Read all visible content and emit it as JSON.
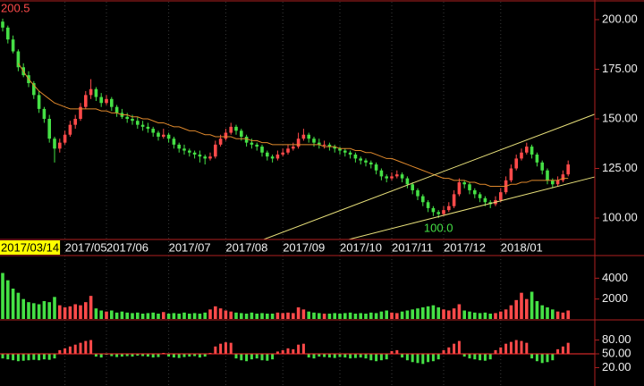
{
  "chart_data": {
    "type": "candlestick",
    "categories": [
      "2017/03/14",
      null,
      null,
      null,
      null,
      null,
      null,
      null,
      null,
      null,
      null,
      null,
      "2017/05",
      null,
      null,
      null,
      null,
      null,
      null,
      null,
      "2017/06",
      null,
      null,
      null,
      null,
      null,
      null,
      null,
      null,
      null,
      null,
      null,
      "2017/07",
      null,
      null,
      null,
      null,
      null,
      null,
      null,
      null,
      null,
      null,
      "2017/08",
      null,
      null,
      null,
      null,
      null,
      null,
      null,
      null,
      null,
      null,
      "2017/09",
      null,
      null,
      null,
      null,
      null,
      null,
      null,
      null,
      null,
      null,
      "2017/10",
      null,
      null,
      null,
      null,
      null,
      null,
      null,
      null,
      null,
      "2017/11",
      null,
      null,
      null,
      null,
      null,
      null,
      null,
      null,
      null,
      "2017/12",
      null,
      null,
      null,
      null,
      null,
      null,
      null,
      null,
      null,
      null,
      "2018/01",
      null,
      null,
      null,
      null,
      null,
      null,
      null,
      null,
      null,
      null,
      null,
      null,
      null
    ],
    "ohlc": [
      [
        199,
        200.5,
        194,
        196
      ],
      [
        196,
        197,
        188,
        190
      ],
      [
        190,
        192,
        183,
        184
      ],
      [
        184,
        185,
        174,
        176
      ],
      [
        176,
        178,
        171,
        172
      ],
      [
        172,
        174,
        166,
        168
      ],
      [
        168,
        169,
        160,
        162
      ],
      [
        162,
        164,
        153,
        155
      ],
      [
        155,
        156,
        148,
        150
      ],
      [
        150,
        152,
        138,
        140
      ],
      [
        140,
        141,
        128,
        135
      ],
      [
        135,
        140,
        133,
        138
      ],
      [
        138,
        144,
        137,
        142
      ],
      [
        142,
        149,
        141,
        147
      ],
      [
        147,
        152,
        145,
        150
      ],
      [
        150,
        158,
        149,
        156
      ],
      [
        156,
        164,
        155,
        162
      ],
      [
        162,
        170,
        160,
        165
      ],
      [
        165,
        166,
        159,
        161
      ],
      [
        161,
        163,
        156,
        158
      ],
      [
        158,
        162,
        157,
        160
      ],
      [
        160,
        161,
        154,
        156
      ],
      [
        156,
        157,
        151,
        153
      ],
      [
        153,
        155,
        150,
        151
      ],
      [
        151,
        153,
        148,
        150
      ],
      [
        150,
        152,
        147,
        149
      ],
      [
        149,
        151,
        145,
        147
      ],
      [
        147,
        149,
        144,
        146
      ],
      [
        146,
        148,
        143,
        145
      ],
      [
        145,
        146,
        141,
        143
      ],
      [
        143,
        144,
        139,
        141
      ],
      [
        141,
        145,
        140,
        142
      ],
      [
        142,
        143,
        138,
        140
      ],
      [
        140,
        141,
        135,
        137
      ],
      [
        137,
        138,
        133,
        135
      ],
      [
        135,
        137,
        132,
        134
      ],
      [
        134,
        135,
        131,
        133
      ],
      [
        133,
        134,
        130,
        132
      ],
      [
        132,
        134,
        128,
        131
      ],
      [
        131,
        132,
        127,
        130
      ],
      [
        130,
        133,
        129,
        131
      ],
      [
        131,
        139,
        130,
        137
      ],
      [
        137,
        142,
        136,
        140
      ],
      [
        140,
        145,
        139,
        143
      ],
      [
        143,
        148,
        142,
        146
      ],
      [
        146,
        147,
        142,
        144
      ],
      [
        144,
        145,
        139,
        141
      ],
      [
        141,
        142,
        136,
        138
      ],
      [
        138,
        140,
        135,
        137
      ],
      [
        137,
        138,
        134,
        136
      ],
      [
        136,
        137,
        131,
        133
      ],
      [
        133,
        134,
        129,
        131
      ],
      [
        131,
        132,
        128,
        130
      ],
      [
        130,
        134,
        129,
        132
      ],
      [
        132,
        135,
        131,
        133
      ],
      [
        133,
        137,
        132,
        135
      ],
      [
        135,
        138,
        134,
        136
      ],
      [
        136,
        143,
        135,
        140
      ],
      [
        140,
        145,
        139,
        142
      ],
      [
        142,
        143,
        138,
        140
      ],
      [
        140,
        141,
        136,
        138
      ],
      [
        138,
        140,
        135,
        137
      ],
      [
        137,
        139,
        135,
        137
      ],
      [
        137,
        138,
        134,
        136
      ],
      [
        136,
        137,
        133,
        135
      ],
      [
        135,
        136,
        132,
        134
      ],
      [
        134,
        135,
        131,
        133
      ],
      [
        133,
        134,
        130,
        132
      ],
      [
        132,
        133,
        128,
        130
      ],
      [
        130,
        131,
        127,
        129
      ],
      [
        129,
        130,
        126,
        128
      ],
      [
        128,
        129,
        125,
        127
      ],
      [
        127,
        128,
        122,
        124
      ],
      [
        124,
        125,
        119,
        121
      ],
      [
        121,
        122,
        118,
        120
      ],
      [
        120,
        123,
        119,
        121
      ],
      [
        121,
        124,
        120,
        122
      ],
      [
        122,
        123,
        118,
        120
      ],
      [
        120,
        121,
        115,
        117
      ],
      [
        117,
        118,
        112,
        114
      ],
      [
        114,
        115,
        109,
        111
      ],
      [
        111,
        112,
        106,
        108
      ],
      [
        108,
        109,
        103,
        105
      ],
      [
        105,
        106,
        101,
        103
      ],
      [
        103,
        104,
        100,
        102
      ],
      [
        102,
        106,
        101,
        104
      ],
      [
        104,
        108,
        103,
        106
      ],
      [
        106,
        114,
        105,
        112
      ],
      [
        112,
        120,
        111,
        118
      ],
      [
        118,
        119,
        115,
        117
      ],
      [
        117,
        118,
        112,
        114
      ],
      [
        114,
        115,
        110,
        112
      ],
      [
        112,
        113,
        108,
        110
      ],
      [
        110,
        111,
        106,
        108
      ],
      [
        108,
        109,
        105,
        107
      ],
      [
        107,
        111,
        106,
        109
      ],
      [
        109,
        115,
        108,
        113
      ],
      [
        113,
        121,
        112,
        119
      ],
      [
        119,
        127,
        118,
        125
      ],
      [
        125,
        132,
        124,
        130
      ],
      [
        130,
        135,
        129,
        133
      ],
      [
        133,
        138,
        132,
        136
      ],
      [
        136,
        137,
        130,
        132
      ],
      [
        132,
        133,
        126,
        128
      ],
      [
        128,
        129,
        122,
        124
      ],
      [
        124,
        125,
        117,
        119
      ],
      [
        119,
        120,
        115,
        117
      ],
      [
        117,
        121,
        116,
        119
      ],
      [
        119,
        124,
        118,
        122
      ],
      [
        122,
        129,
        121,
        127
      ]
    ],
    "ylim": [
      89.2,
      209.9
    ],
    "yticks": [
      {
        "value": 100,
        "label": "100.00"
      },
      {
        "value": 125,
        "label": "125.00"
      },
      {
        "value": 150,
        "label": "150.00"
      },
      {
        "value": 175,
        "label": "175.00"
      },
      {
        "value": 200,
        "label": "200.00"
      }
    ],
    "high_label": "200.5",
    "low_label": "100.0",
    "up_color": "#ff4a4a",
    "down_color": "#45e045",
    "ma": {
      "color": "#e0892c",
      "values": [
        null,
        null,
        null,
        178,
        174,
        170,
        167,
        164,
        162,
        160,
        158,
        157,
        156,
        155,
        155,
        155,
        155,
        155,
        155,
        154,
        154,
        153,
        153,
        152,
        152,
        151,
        151,
        150,
        150,
        149,
        148,
        148,
        147,
        146,
        146,
        145,
        144,
        144,
        143,
        142,
        142,
        141,
        141,
        141,
        141,
        140,
        140,
        140,
        139,
        139,
        138,
        138,
        137,
        137,
        137,
        137,
        137,
        137,
        137,
        137,
        137,
        137,
        136,
        136,
        136,
        135,
        135,
        135,
        134,
        134,
        133,
        133,
        132,
        131,
        130,
        130,
        129,
        128,
        127,
        126,
        125,
        124,
        123,
        122,
        121,
        120,
        120,
        119,
        119,
        119,
        118,
        118,
        117,
        117,
        116,
        116,
        116,
        116,
        117,
        117,
        118,
        118,
        119,
        119,
        119,
        119,
        119,
        119,
        120,
        120
      ]
    },
    "trend_lines": {
      "color": "#e8e07a",
      "lines": [
        {
          "x": [
            50.3,
            114.1
          ],
          "y": [
            89.2,
            152.3
          ]
        },
        {
          "x": [
            66.7,
            114.1
          ],
          "y": [
            89.2,
            120.7
          ]
        }
      ]
    },
    "volume": {
      "values": [
        4500,
        3800,
        3000,
        2600,
        2000,
        1700,
        1600,
        1500,
        1800,
        1700,
        2200,
        1400,
        1200,
        1300,
        1500,
        1400,
        1700,
        2300,
        1100,
        900,
        800,
        900,
        700,
        800,
        700,
        650,
        700,
        600,
        650,
        700,
        600,
        750,
        600,
        650,
        600,
        700,
        600,
        650,
        600,
        700,
        1000,
        1300,
        1100,
        900,
        800,
        700,
        650,
        600,
        700,
        600,
        650,
        600,
        600,
        700,
        650,
        700,
        650,
        1200,
        1000,
        800,
        700,
        650,
        600,
        600,
        650,
        600,
        650,
        700,
        600,
        650,
        600,
        700,
        650,
        800,
        900,
        700,
        650,
        800,
        900,
        1000,
        1100,
        1200,
        1300,
        1400,
        1200,
        1000,
        900,
        1100,
        1500,
        900,
        800,
        700,
        650,
        700,
        600,
        650,
        800,
        1000,
        1400,
        1900,
        2600,
        2000,
        2700,
        1800,
        1400,
        1200,
        1000,
        800,
        700,
        900
      ],
      "ylim": [
        0,
        6000
      ],
      "yticks": [
        2000,
        4000
      ]
    },
    "oscillator": {
      "values": [
        40,
        38,
        36,
        34,
        35,
        36,
        37,
        36,
        38,
        37,
        40,
        58,
        62,
        66,
        70,
        74,
        78,
        80,
        44,
        42,
        48,
        45,
        43,
        44,
        45,
        44,
        46,
        45,
        44,
        42,
        43,
        52,
        44,
        42,
        41,
        43,
        44,
        45,
        42,
        44,
        52,
        66,
        72,
        75,
        74,
        40,
        36,
        34,
        38,
        40,
        36,
        35,
        38,
        55,
        58,
        62,
        60,
        70,
        72,
        42,
        40,
        44,
        43,
        42,
        41,
        43,
        42,
        40,
        41,
        42,
        40,
        36,
        34,
        36,
        38,
        56,
        58,
        42,
        36,
        32,
        30,
        28,
        32,
        34,
        38,
        58,
        64,
        72,
        78,
        44,
        40,
        38,
        36,
        35,
        38,
        58,
        64,
        72,
        76,
        80,
        78,
        74,
        40,
        34,
        30,
        32,
        36,
        60,
        66,
        74
      ],
      "ylim": [
        -20,
        120
      ],
      "yticks": [
        {
          "value": 20,
          "label": "20.00"
        },
        {
          "value": 50,
          "label": "50.00"
        },
        {
          "value": 80,
          "label": "80.00"
        }
      ],
      "baseline": 50,
      "baseline_color": "#ff3030"
    }
  }
}
